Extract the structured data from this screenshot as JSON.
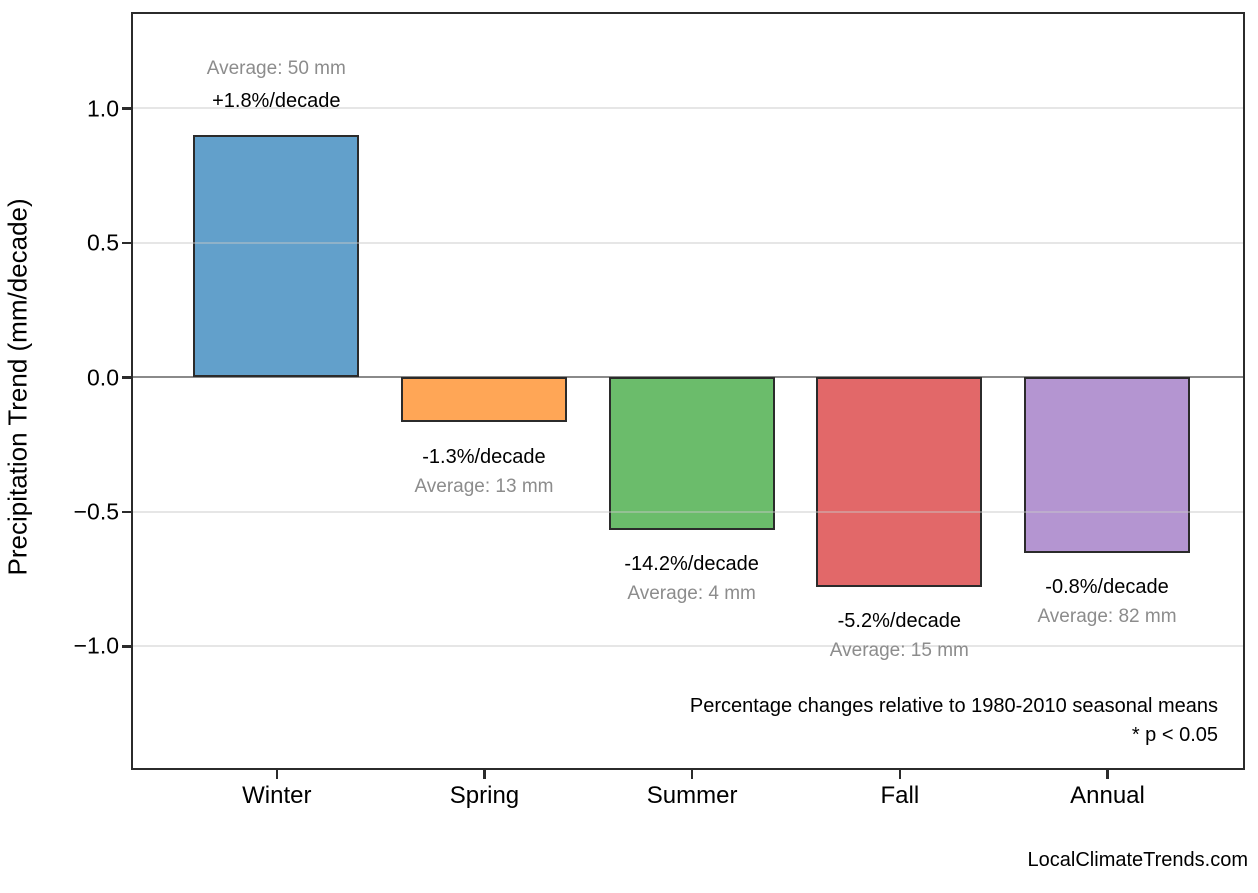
{
  "watermark": "LocalClimateTrends.com",
  "chart_data": {
    "type": "bar",
    "title": "",
    "xlabel": "",
    "ylabel": "Precipitation Trend (mm/decade)",
    "categories": [
      "Winter",
      "Spring",
      "Summer",
      "Fall",
      "Annual"
    ],
    "values": [
      0.9,
      -0.169,
      -0.568,
      -0.78,
      -0.656
    ],
    "bar_labels": [
      {
        "pct": "+1.8%/decade",
        "avg": "Average: 50 mm"
      },
      {
        "pct": "-1.3%/decade",
        "avg": "Average: 13 mm"
      },
      {
        "pct": "-14.2%/decade",
        "avg": "Average: 4 mm"
      },
      {
        "pct": "-5.2%/decade",
        "avg": "Average: 15 mm"
      },
      {
        "pct": "-0.8%/decade",
        "avg": "Average: 82 mm"
      }
    ],
    "bar_colors": [
      "#62A0CB",
      "#FFA656",
      "#6BBC6B",
      "#E26869",
      "#B495D1"
    ],
    "bar_edge_color": "#2b2b2b",
    "bar_width": 0.8,
    "y_ticks": [
      1.0,
      0.5,
      0.0,
      -0.5,
      -1.0
    ],
    "y_tick_labels": [
      "1.0",
      "0.5",
      "0.0",
      "−0.5",
      "−1.0"
    ],
    "ylim": [
      -1.45,
      1.35
    ],
    "xlim": [
      -0.69,
      4.65
    ],
    "grid": "horizontal major gridlines, light gray",
    "legend": "none",
    "zero_line_color": "#8a8a8a",
    "grid_color": "#e9e9e9",
    "annotations": [
      "Percentage changes relative to 1980-2010 seasonal means",
      "* p < 0.05"
    ]
  }
}
